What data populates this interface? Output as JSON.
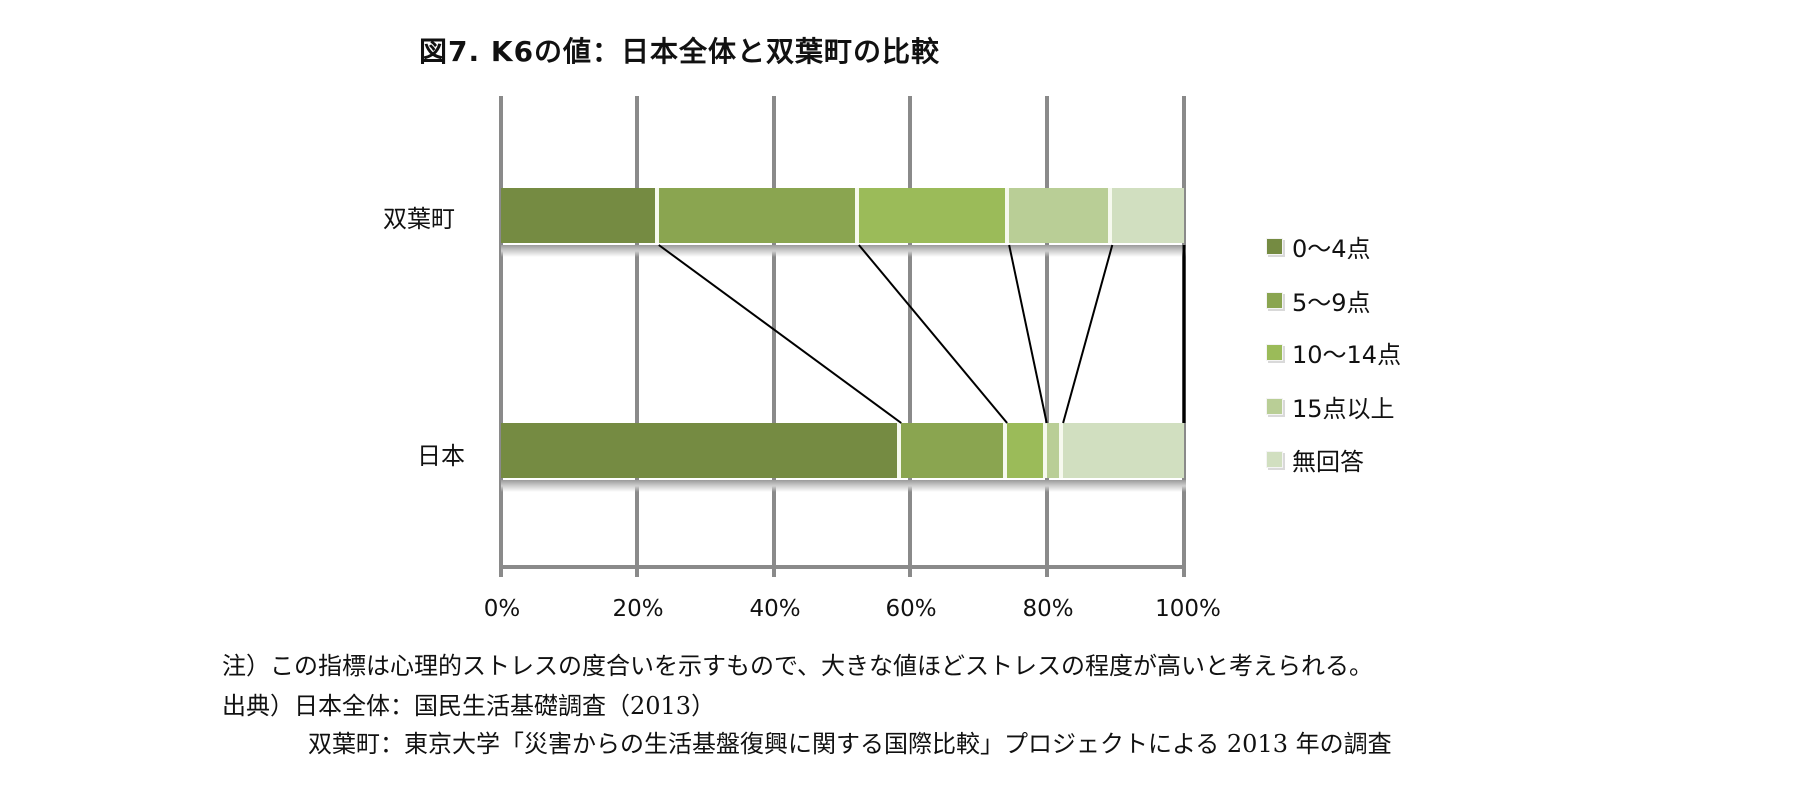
{
  "title": "図7. K6の値：日本全体と双葉町の比較",
  "axis": {
    "ticks": [
      "0%",
      "20%",
      "40%",
      "60%",
      "80%",
      "100%"
    ]
  },
  "categories": {
    "top": "双葉町",
    "bottom": "日本"
  },
  "legend": {
    "items": [
      {
        "label": "0〜4点",
        "color": "#758b42"
      },
      {
        "label": "5〜9点",
        "color": "#8aa550"
      },
      {
        "label": "10〜14点",
        "color": "#9bbb59"
      },
      {
        "label": "15点以上",
        "color": "#b9ce96"
      },
      {
        "label": "無回答",
        "color": "#d1dfc0"
      }
    ]
  },
  "notes": {
    "line1": "注）この指標は心理的ストレスの度合いを示すもので、大きな値ほどストレスの程度が高いと考えられる。",
    "line2": "出典）日本全体：国民生活基礎調査（2013）",
    "line3": "双葉町：東京大学「災害からの生活基盤復興に関する国際比較」プロジェクトによる 2013 年の調査"
  },
  "chart_data": {
    "type": "bar",
    "orientation": "horizontal",
    "stacked": "percent",
    "title": "図7. K6の値：日本全体と双葉町の比較",
    "categories": [
      "双葉町",
      "日本"
    ],
    "series": [
      {
        "name": "0〜4点",
        "values": [
          23.1,
          58.6
        ],
        "color": "#758b42"
      },
      {
        "name": "5〜9点",
        "values": [
          29.3,
          15.5
        ],
        "color": "#8aa550"
      },
      {
        "name": "10〜14点",
        "values": [
          22.0,
          5.8
        ],
        "color": "#9bbb59"
      },
      {
        "name": "15点以上",
        "values": [
          15.1,
          2.4
        ],
        "color": "#b9ce96"
      },
      {
        "name": "無回答",
        "values": [
          10.5,
          17.7
        ],
        "color": "#d1dfc0"
      }
    ],
    "xlabel": "",
    "ylabel": "",
    "xlim": [
      0,
      100
    ],
    "x_ticks": [
      "0%",
      "20%",
      "40%",
      "60%",
      "80%",
      "100%"
    ],
    "grid": "vertical",
    "series_lines": true,
    "legend_position": "right"
  }
}
